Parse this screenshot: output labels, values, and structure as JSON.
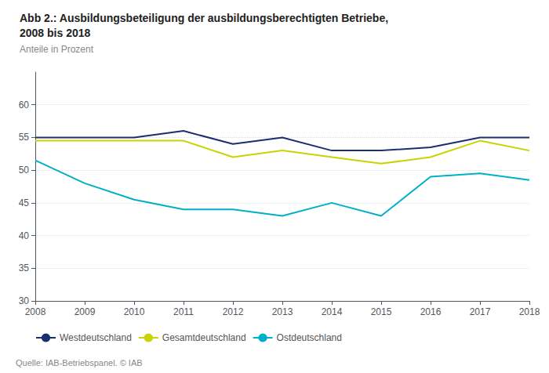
{
  "chart_data": {
    "type": "line",
    "title": "Abb 2.: Ausbildungsbeteiligung der ausbildungsberechtigten Betriebe,\n2008 bis 2018",
    "subtitle": "Anteile in Prozent",
    "annotations": [
      "Quelle: IAB-Betriebspanel. © IAB"
    ],
    "x": [
      2008,
      2009,
      2010,
      2011,
      2012,
      2013,
      2014,
      2015,
      2016,
      2017,
      2018
    ],
    "series": [
      {
        "name": "Westdeutschland",
        "color": "#1a2f6e",
        "values": [
          55.0,
          55.0,
          55.0,
          56.0,
          54.0,
          55.0,
          53.0,
          53.0,
          53.5,
          55.0,
          55.0
        ]
      },
      {
        "name": "Gesamtdeutschland",
        "color": "#c8d400",
        "values": [
          54.5,
          54.5,
          54.5,
          54.5,
          52.0,
          53.0,
          52.0,
          51.0,
          52.0,
          54.5,
          53.0
        ]
      },
      {
        "name": "Ostdeutschland",
        "color": "#00b0c8",
        "values": [
          51.5,
          48.0,
          45.5,
          44.0,
          44.0,
          43.0,
          45.0,
          43.0,
          49.0,
          49.5,
          48.5
        ]
      }
    ],
    "xlim": [
      2008,
      2018
    ],
    "xticks": [
      2008,
      2009,
      2010,
      2011,
      2012,
      2013,
      2014,
      2015,
      2016,
      2017,
      2018
    ],
    "ylim": [
      30,
      65
    ],
    "yticks": [
      30,
      35,
      40,
      45,
      50,
      55,
      60
    ],
    "grid": true,
    "legend": "bottom"
  }
}
